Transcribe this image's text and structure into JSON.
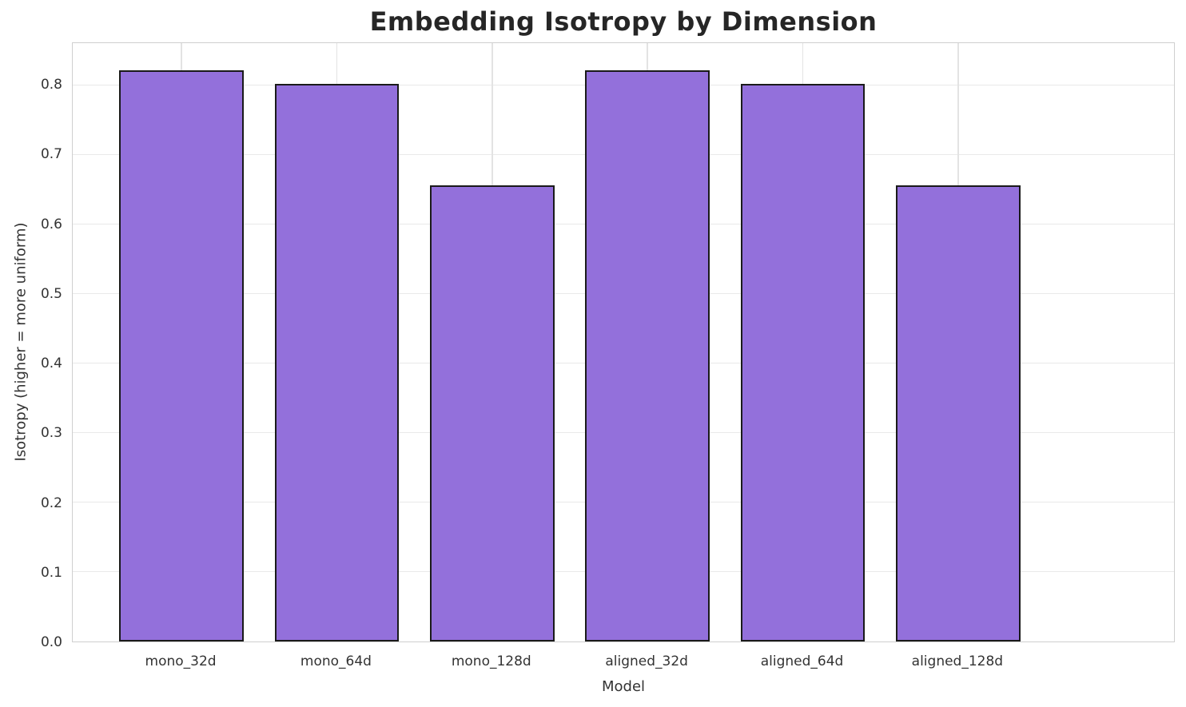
{
  "chart_data": {
    "type": "bar",
    "title": "Embedding Isotropy by Dimension",
    "xlabel": "Model",
    "ylabel": "Isotropy (higher = more uniform)",
    "categories": [
      "mono_32d",
      "mono_64d",
      "mono_128d",
      "aligned_32d",
      "aligned_64d",
      "aligned_128d"
    ],
    "values": [
      0.82,
      0.8,
      0.655,
      0.82,
      0.8,
      0.655
    ],
    "ylim": [
      0,
      0.861
    ],
    "yticks": [
      0.0,
      0.1,
      0.2,
      0.3,
      0.4,
      0.5,
      0.6,
      0.7,
      0.8
    ],
    "ytick_labels": [
      "0.0",
      "0.1",
      "0.2",
      "0.3",
      "0.4",
      "0.5",
      "0.6",
      "0.7",
      "0.8"
    ],
    "grid": true,
    "legend": null,
    "bar_color": "#9370DB",
    "bar_edge_color": "#1a1a1a",
    "grid_color": "#e9e9e9",
    "background_color": "#ffffff",
    "title_color": "#262626",
    "tick_color": "#333333"
  }
}
